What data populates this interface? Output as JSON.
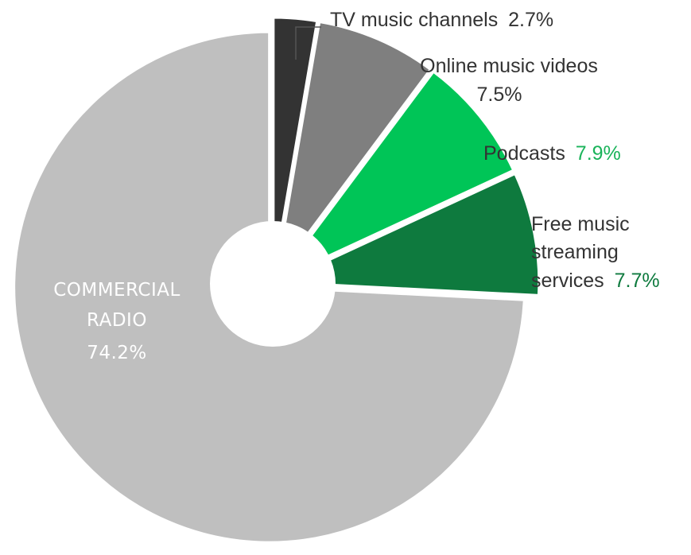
{
  "chart_data": {
    "type": "pie",
    "title": "",
    "variant": "exploded donut",
    "slices": [
      {
        "name": "TV music channels",
        "value": 2.7,
        "label": "2.7%",
        "color": "#333333",
        "value_color": "#333333"
      },
      {
        "name": "Online music videos",
        "value": 7.5,
        "label": "7.5%",
        "color": "#7f7f7f",
        "value_color": "#8c8c8c"
      },
      {
        "name": "Podcasts",
        "value": 7.9,
        "label": "7.9%",
        "color": "#00c557",
        "value_color": "#1ab35a"
      },
      {
        "name": "Free music streaming services",
        "value": 7.7,
        "label": "7.7%",
        "color": "#0e7a3e",
        "value_color": "#0e7a3e"
      },
      {
        "name": "COMMERCIAL RADIO",
        "value": 74.2,
        "label": "74.2%",
        "color": "#bfbfbf",
        "value_color": "#ffffff"
      }
    ]
  },
  "labels": {
    "tv_name": "TV music channels",
    "tv_value": "2.7%",
    "online_line1": "Online music videos",
    "online_value": "7.5%",
    "podcasts_name": "Podcasts",
    "podcasts_value": "7.9%",
    "free_line1": "Free music",
    "free_line2": "streaming",
    "free_line3": "services",
    "free_value": "7.7%",
    "radio_line1": "COMMERCIAL",
    "radio_line2": "RADIO",
    "radio_value": "74.2%"
  }
}
